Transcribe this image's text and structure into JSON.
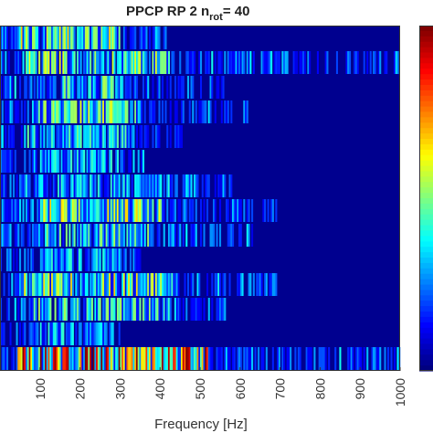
{
  "chart_data": {
    "type": "heatmap",
    "title": "PPCP  RP 2 n",
    "title_subscript": "rot",
    "title_suffix": "= 40",
    "xlabel": "Frequency [Hz]",
    "ylabel": "",
    "xlim": [
      0,
      1000
    ],
    "xticks": [
      100,
      200,
      300,
      400,
      500,
      600,
      700,
      800,
      900,
      1000
    ],
    "xtick_labels": [
      "100",
      "200",
      "300",
      "400",
      "500",
      "600",
      "700",
      "800",
      "900",
      "1000"
    ],
    "colormap": "jet",
    "background_value": 0,
    "grid": false,
    "colorbar": "right (partially visible)",
    "rows": [
      {
        "extent_hz": [
          0,
          420
        ],
        "active_hz": [
          40,
          300
        ],
        "intensity": 0.55
      },
      {
        "extent_hz": [
          0,
          1000
        ],
        "active_hz": [
          60,
          420
        ],
        "intensity": 0.5
      },
      {
        "extent_hz": [
          0,
          560
        ],
        "active_hz": [
          150,
          300
        ],
        "intensity": 0.45
      },
      {
        "extent_hz": [
          0,
          620
        ],
        "active_hz": [
          80,
          350
        ],
        "intensity": 0.5
      },
      {
        "extent_hz": [
          0,
          460
        ],
        "active_hz": [
          60,
          320
        ],
        "intensity": 0.4
      },
      {
        "extent_hz": [
          0,
          360
        ],
        "active_hz": [
          100,
          300
        ],
        "intensity": 0.35
      },
      {
        "extent_hz": [
          0,
          580
        ],
        "active_hz": [
          60,
          420
        ],
        "intensity": 0.35
      },
      {
        "extent_hz": [
          0,
          690
        ],
        "active_hz": [
          100,
          400
        ],
        "intensity": 0.55
      },
      {
        "extent_hz": [
          0,
          630
        ],
        "active_hz": [
          80,
          380
        ],
        "intensity": 0.45
      },
      {
        "extent_hz": [
          0,
          350
        ],
        "active_hz": [
          100,
          300
        ],
        "intensity": 0.35
      },
      {
        "extent_hz": [
          0,
          690
        ],
        "active_hz": [
          60,
          440
        ],
        "intensity": 0.55
      },
      {
        "extent_hz": [
          0,
          570
        ],
        "active_hz": [
          80,
          420
        ],
        "intensity": 0.45
      },
      {
        "extent_hz": [
          0,
          300
        ],
        "active_hz": [
          80,
          260
        ],
        "intensity": 0.35
      },
      {
        "extent_hz": [
          0,
          1000
        ],
        "active_hz": [
          40,
          520
        ],
        "intensity": 0.85
      }
    ]
  }
}
